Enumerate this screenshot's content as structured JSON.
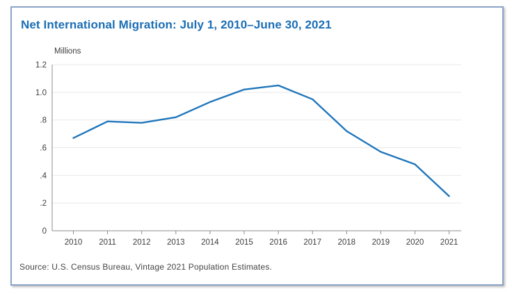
{
  "card": {
    "title": "Net International Migration: July 1, 2010–June 30, 2021",
    "source": "Source: U.S. Census Bureau, Vintage 2021 Population Estimates."
  },
  "chart_data": {
    "type": "line",
    "title": "Net International Migration: July 1, 2010–June 30, 2021",
    "unit_label": "Millions",
    "x": [
      2010,
      2011,
      2012,
      2013,
      2014,
      2015,
      2016,
      2017,
      2018,
      2019,
      2020,
      2021
    ],
    "values": [
      0.67,
      0.79,
      0.78,
      0.82,
      0.93,
      1.02,
      1.05,
      0.95,
      0.72,
      0.57,
      0.48,
      0.25
    ],
    "ylim": [
      0,
      1.2
    ],
    "yticks": [
      0,
      0.2,
      0.4,
      0.6,
      0.8,
      1.0,
      1.2
    ],
    "ytick_labels": [
      "0",
      ".2",
      ".4",
      ".6",
      ".8",
      "1.0",
      "1.2"
    ],
    "grid": true,
    "legend": "none",
    "markers": false
  },
  "colors": {
    "line": "#1f76bc",
    "title": "#1b6eb5",
    "grid": "#e9e9e9",
    "axis": "#8c8c8c",
    "tick_text": "#3c3c3c",
    "border": "#8aa3c6"
  }
}
